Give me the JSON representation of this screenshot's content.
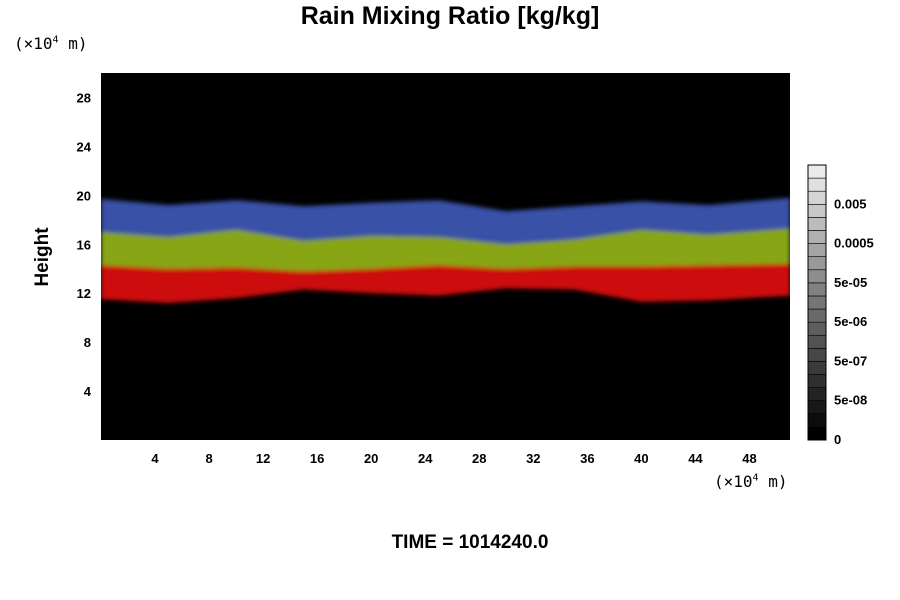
{
  "chart_data": {
    "type": "heatmap",
    "title": "Rain Mixing Ratio [kg/kg]",
    "ylabel": "Height",
    "xlabel": "",
    "x_unit": {
      "prefix": "(×10",
      "exp": "4",
      "suffix": " m)"
    },
    "y_unit": {
      "prefix": "(×10",
      "exp": "4",
      "suffix": " m)"
    },
    "xlim": [
      0,
      51
    ],
    "ylim": [
      0,
      30
    ],
    "x_ticks": [
      4,
      8,
      12,
      16,
      20,
      24,
      28,
      32,
      36,
      40,
      44,
      48
    ],
    "y_ticks": [
      4,
      8,
      12,
      16,
      20,
      24,
      28
    ],
    "colorbar": {
      "levels": 21,
      "labels": [
        {
          "level": 0,
          "text": "0"
        },
        {
          "level": 3,
          "text": "5e-08"
        },
        {
          "level": 6,
          "text": "5e-07"
        },
        {
          "level": 9,
          "text": "5e-06"
        },
        {
          "level": 12,
          "text": "5e-05"
        },
        {
          "level": 15,
          "text": "0.0005"
        },
        {
          "level": 18,
          "text": "0.005"
        }
      ]
    },
    "bands": [
      {
        "name": "red",
        "color": "#d81010",
        "bottom": [
          11.5,
          11.2,
          11.6,
          12.3,
          12.0,
          11.8,
          12.4,
          12.3,
          11.3,
          11.4,
          11.8
        ],
        "top": [
          14.3,
          14.0,
          14.1,
          13.8,
          14.0,
          14.3,
          14.0,
          14.2,
          14.2,
          14.3,
          14.4
        ]
      },
      {
        "name": "yellow-green",
        "color": "#8fae16",
        "bottom": [
          14.3,
          14.0,
          14.1,
          13.8,
          14.0,
          14.3,
          14.0,
          14.2,
          14.2,
          14.3,
          14.4
        ],
        "top": [
          17.0,
          16.6,
          17.2,
          16.3,
          16.7,
          16.6,
          16.0,
          16.4,
          17.2,
          16.8,
          17.3
        ]
      },
      {
        "name": "blue",
        "color": "#3d55b0",
        "bottom": [
          17.0,
          16.6,
          17.2,
          16.3,
          16.7,
          16.6,
          16.0,
          16.4,
          17.2,
          16.8,
          17.3
        ],
        "top": [
          19.7,
          19.2,
          19.6,
          19.1,
          19.4,
          19.6,
          18.7,
          19.1,
          19.5,
          19.2,
          19.8
        ]
      }
    ],
    "band_x": [
      0,
      5,
      10,
      15,
      20,
      25,
      30,
      35,
      40,
      45,
      51
    ],
    "background": "#000000"
  },
  "footer": {
    "time": "TIME = 1014240.0"
  }
}
